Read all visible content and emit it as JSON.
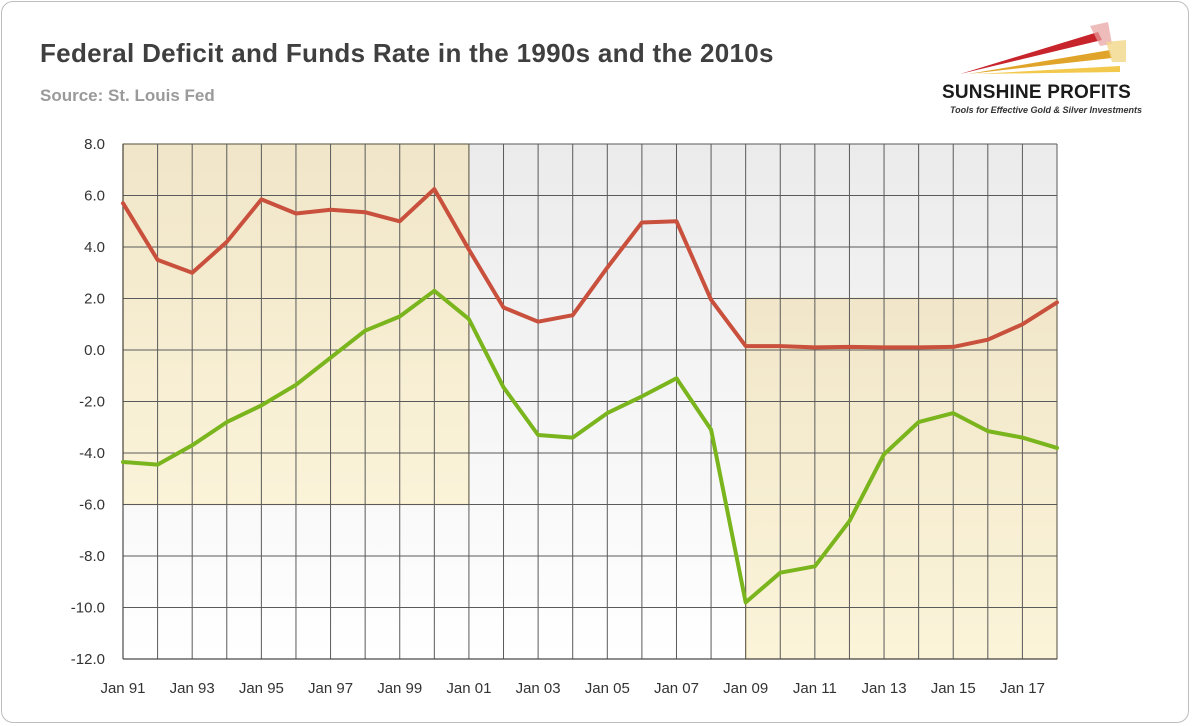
{
  "header": {
    "title": "Federal Deficit and Funds Rate in the 1990s and the 2010s",
    "subtitle": "Source: St. Louis Fed"
  },
  "logo": {
    "name": "SUNSHINE PROFITS",
    "tagline": "Tools for Effective Gold & Silver Investments"
  },
  "chart_data": {
    "type": "line",
    "title": "Federal Deficit and Funds Rate in the 1990s and the 2010s",
    "subtitle": "Source: St. Louis Fed",
    "x": [
      1991,
      1992,
      1993,
      1994,
      1995,
      1996,
      1997,
      1998,
      1999,
      2000,
      2001,
      2002,
      2003,
      2004,
      2005,
      2006,
      2007,
      2008,
      2009,
      2010,
      2011,
      2012,
      2013,
      2014,
      2015,
      2016,
      2017,
      2018
    ],
    "xtick_labels": [
      "Jan 91",
      "Jan 93",
      "Jan 95",
      "Jan 97",
      "Jan 99",
      "Jan 01",
      "Jan 03",
      "Jan 05",
      "Jan 07",
      "Jan 09",
      "Jan 11",
      "Jan 13",
      "Jan 15",
      "Jan 17"
    ],
    "ytick_labels": [
      "8.0",
      "6.0",
      "4.0",
      "2.0",
      "0.0",
      "-2.0",
      "-4.0",
      "-6.0",
      "-8.0",
      "-10.0",
      "-12.0"
    ],
    "ylim": [
      -12,
      8
    ],
    "grid": true,
    "legend": "none",
    "series": [
      {
        "color": "#c8503c",
        "values": [
          5.7,
          3.5,
          3.0,
          4.2,
          5.85,
          5.3,
          5.45,
          5.35,
          5.0,
          6.25,
          3.9,
          1.65,
          1.1,
          1.35,
          3.2,
          4.95,
          5.0,
          1.95,
          0.15,
          0.15,
          0.1,
          0.12,
          0.1,
          0.1,
          0.12,
          0.4,
          1.0,
          1.85
        ]
      },
      {
        "color": "#7ab51d",
        "values": [
          -4.35,
          -4.45,
          -3.7,
          -2.8,
          -2.15,
          -1.35,
          -0.3,
          0.75,
          1.3,
          2.3,
          1.2,
          -1.45,
          -3.3,
          -3.4,
          -2.45,
          -1.8,
          -1.1,
          -3.1,
          -9.8,
          -8.65,
          -8.4,
          -6.65,
          -4.05,
          -2.8,
          -2.45,
          -3.15,
          -3.4,
          -3.8
        ]
      }
    ],
    "highlights": [
      {
        "x_range": [
          1991,
          2001
        ],
        "y_range": [
          -6,
          8
        ]
      },
      {
        "x_range": [
          2009,
          2018
        ],
        "y_range": [
          -12,
          2
        ]
      }
    ],
    "plot_gradient": [
      "#ebebeb",
      "#ffffff"
    ],
    "highlight_gradient": [
      "#f1e5c6",
      "#fbf3d6"
    ],
    "highlight_border": "#d7b556"
  }
}
